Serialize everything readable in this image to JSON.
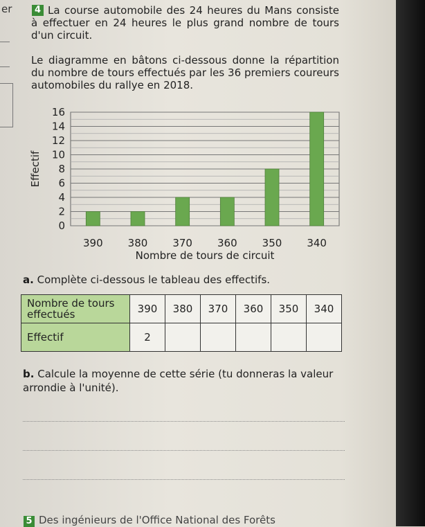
{
  "margin": {
    "word": "er"
  },
  "top_strip": {
    "text": "......"
  },
  "exercise": {
    "number": "4",
    "intro": "La course automobile des 24 heures du Mans consiste à effectuer en 24 heures le plus grand nombre de tours d'un circuit.",
    "chart_intro": "Le diagramme en bâtons ci-dessous donne la répartition du nombre de tours effectués par les 36 premiers coureurs automobiles du rallye en 2018."
  },
  "chart_data": {
    "type": "bar",
    "categories": [
      "390",
      "380",
      "370",
      "360",
      "350",
      "340"
    ],
    "values": [
      2,
      2,
      4,
      4,
      8,
      16
    ],
    "xlabel": "Nombre de tours de circuit",
    "ylabel": "Effectif",
    "ylim": [
      0,
      16
    ],
    "yticks": [
      0,
      2,
      4,
      6,
      8,
      10,
      12,
      14,
      16
    ],
    "bar_color": "#6aa84f",
    "grid": true
  },
  "question_a": {
    "letter": "a.",
    "text": "Complète ci-dessous le tableau des effectifs."
  },
  "table": {
    "header_label": "Nombre de tours effectués",
    "row_label": "Effectif",
    "columns": [
      "390",
      "380",
      "370",
      "360",
      "350",
      "340"
    ],
    "effectifs": [
      "2",
      "",
      "",
      "",
      "",
      ""
    ]
  },
  "question_b": {
    "letter": "b.",
    "text": "Calcule la moyenne de cette série (tu donneras la valeur arrondie à l'unité)."
  },
  "footer": {
    "number": "5",
    "text": "Des ingénieurs de l'Office National des Forêts"
  }
}
